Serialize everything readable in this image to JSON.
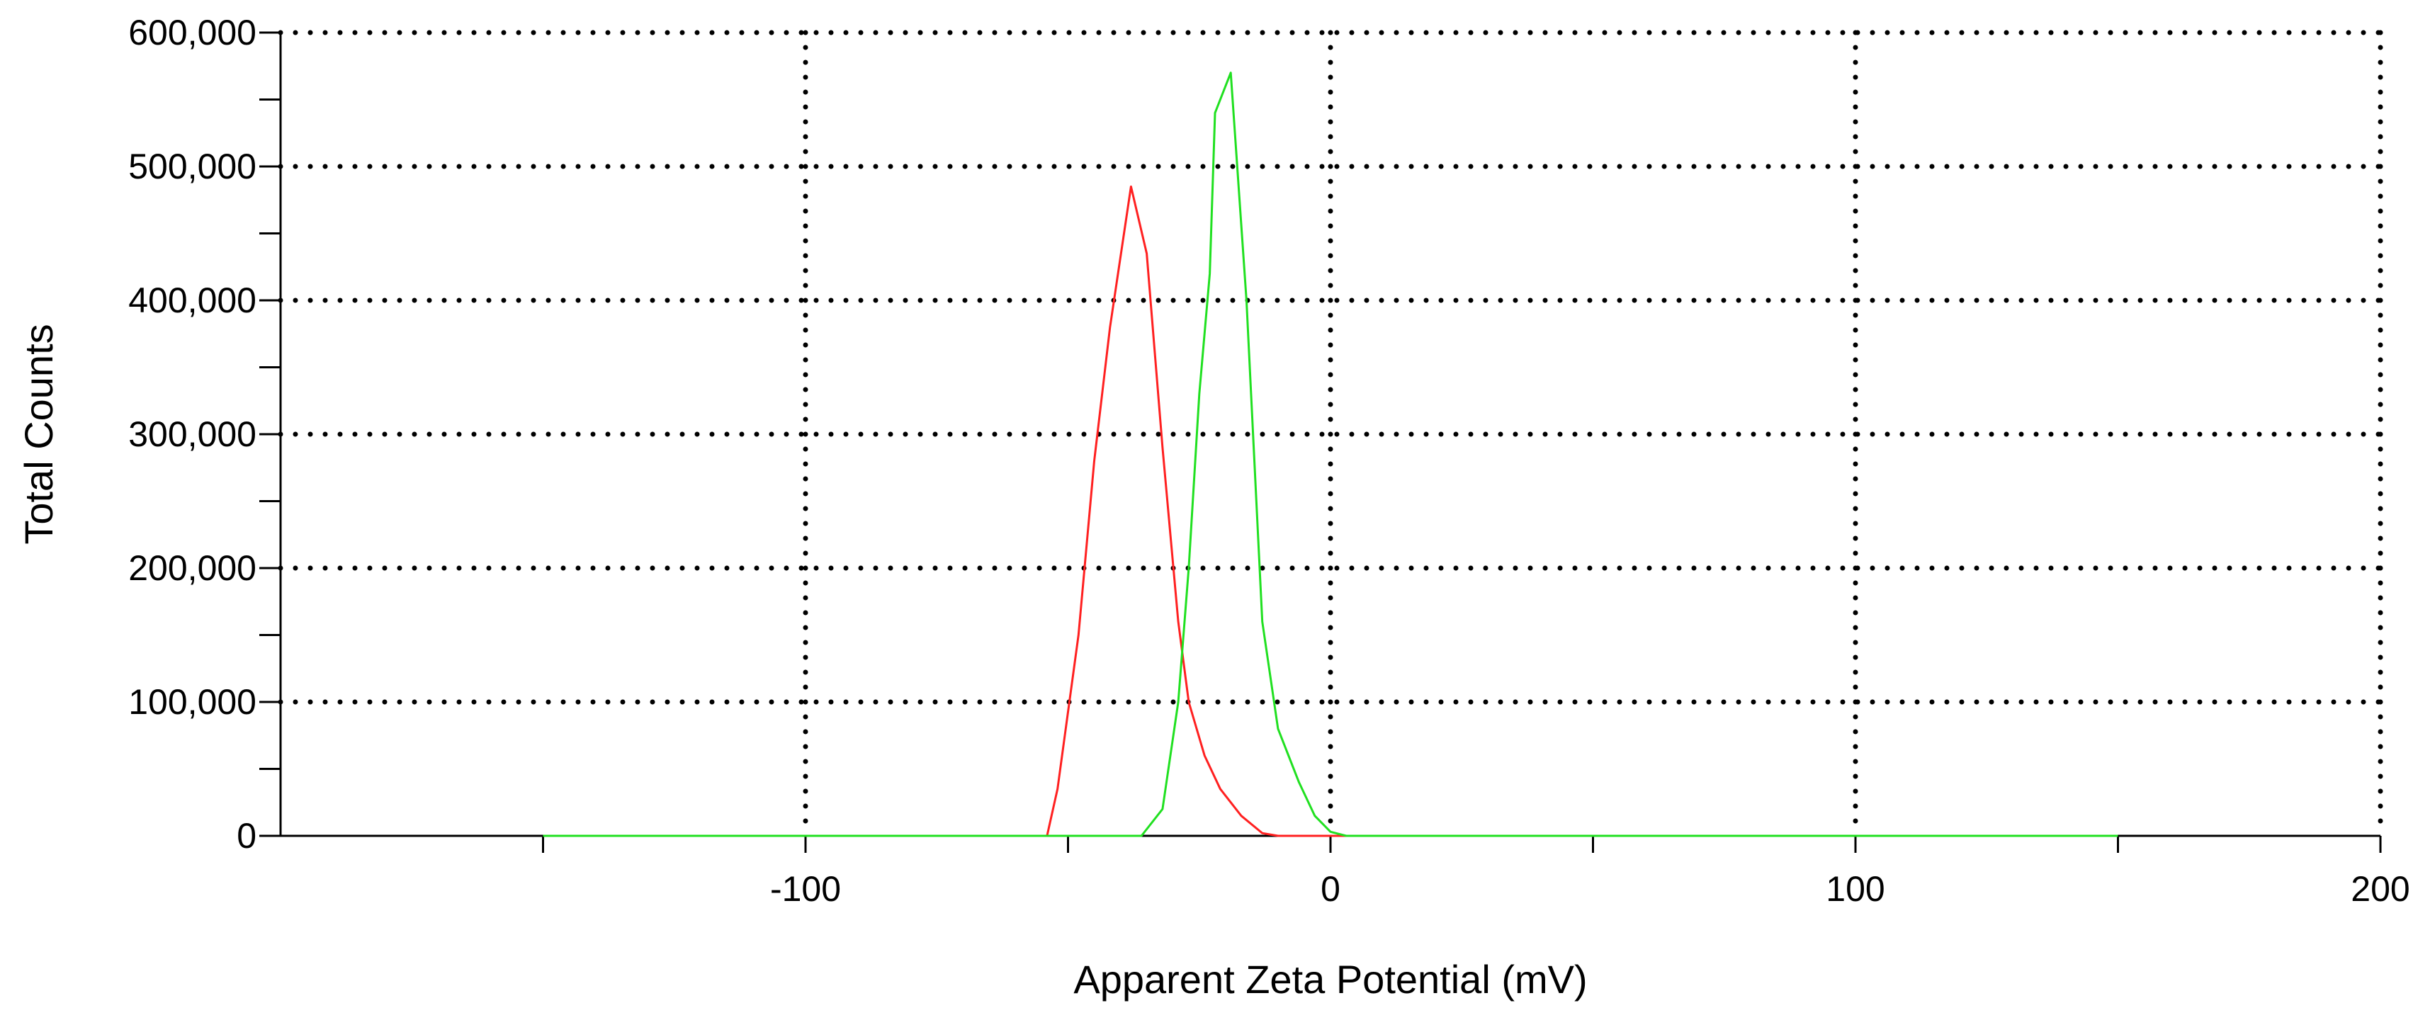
{
  "chart_data": {
    "type": "line",
    "title": "",
    "xlabel": "Apparent Zeta Potential (mV)",
    "ylabel": "Total Counts",
    "xlim": [
      -200,
      200
    ],
    "ylim": [
      0,
      600000
    ],
    "x_ticks": [
      -100,
      0,
      100,
      200
    ],
    "x_tick_labels": [
      "-100",
      "0",
      "100",
      "200"
    ],
    "x_minor_ticks": [
      -150,
      -50,
      50,
      150
    ],
    "y_ticks": [
      0,
      100000,
      200000,
      300000,
      400000,
      500000,
      600000
    ],
    "y_tick_labels": [
      "0",
      "100,000",
      "200,000",
      "300,000",
      "400,000",
      "500,000",
      "600,000"
    ],
    "y_minor_ticks": [
      50000,
      150000,
      250000,
      350000,
      450000,
      550000
    ],
    "grid": true,
    "grid_style": "dotted",
    "legend": false,
    "series": [
      {
        "color": "#ff2020",
        "points": [
          [
            -150,
            0
          ],
          [
            -54,
            0
          ],
          [
            -52,
            35000
          ],
          [
            -48,
            150000
          ],
          [
            -45,
            280000
          ],
          [
            -42,
            380000
          ],
          [
            -38,
            485000
          ],
          [
            -35,
            435000
          ],
          [
            -32,
            290000
          ],
          [
            -29,
            160000
          ],
          [
            -27,
            100000
          ],
          [
            -24,
            60000
          ],
          [
            -21,
            35000
          ],
          [
            -17,
            15000
          ],
          [
            -13,
            2000
          ],
          [
            -10,
            0
          ],
          [
            0,
            0
          ],
          [
            150,
            0
          ]
        ]
      },
      {
        "color": "#20e020",
        "points": [
          [
            -150,
            0
          ],
          [
            -36,
            0
          ],
          [
            -32,
            20000
          ],
          [
            -29,
            100000
          ],
          [
            -27,
            200000
          ],
          [
            -25,
            330000
          ],
          [
            -23,
            420000
          ],
          [
            -22,
            540000
          ],
          [
            -19,
            570000
          ],
          [
            -16,
            400000
          ],
          [
            -13,
            160000
          ],
          [
            -10,
            80000
          ],
          [
            -6,
            40000
          ],
          [
            -3,
            15000
          ],
          [
            0,
            3000
          ],
          [
            3,
            0
          ],
          [
            150,
            0
          ]
        ]
      }
    ],
    "colors": {
      "axis": "#000000",
      "grid": "#000000",
      "background": "#ffffff"
    }
  }
}
